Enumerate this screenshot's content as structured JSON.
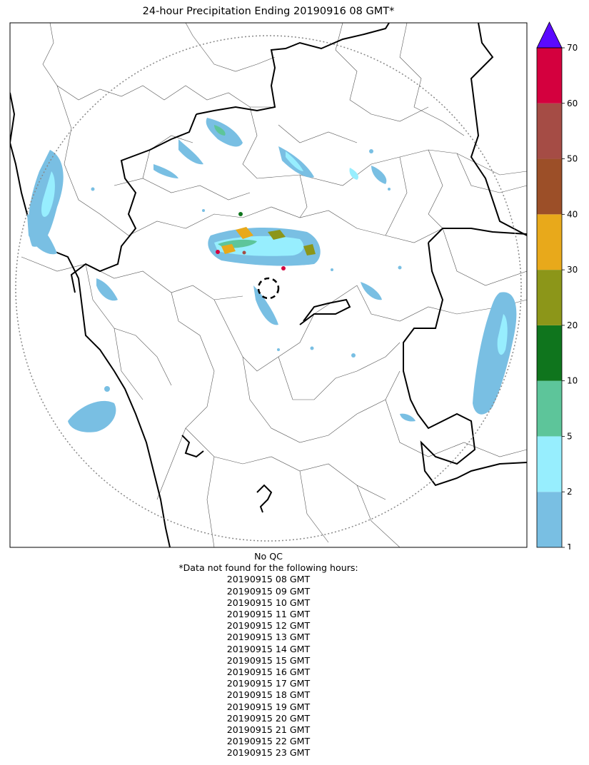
{
  "title": "24-hour Precipitation Ending 20190916 08 GMT*",
  "qc_note": "No QC",
  "missing_header": "*Data not found for the following hours:",
  "missing_hours": [
    "20190915 08 GMT",
    "20190915 09 GMT",
    "20190915 10 GMT",
    "20190915 11 GMT",
    "20190915 12 GMT",
    "20190915 13 GMT",
    "20190915 14 GMT",
    "20190915 15 GMT",
    "20190915 16 GMT",
    "20190915 17 GMT",
    "20190915 18 GMT",
    "20190915 19 GMT",
    "20190915 20 GMT",
    "20190915 21 GMT",
    "20190915 22 GMT",
    "20190915 23 GMT"
  ],
  "colorbar": {
    "levels": [
      1,
      2,
      5,
      10,
      20,
      30,
      40,
      50,
      60,
      70
    ],
    "tick_labels": [
      "1",
      "2",
      "5",
      "10",
      "20",
      "30",
      "40",
      "50",
      "60",
      "70"
    ],
    "colors": [
      "#79bfe3",
      "#97eefe",
      "#5dc59a",
      "#0f751d",
      "#8c9619",
      "#e8a91b",
      "#9c4f28",
      "#a54c45",
      "#d4003e"
    ],
    "extend_color": "#5a0aff"
  },
  "map_colors": {
    "ocean_coast": "#000000",
    "state_border": "#000000",
    "district_border": "#555555",
    "radar_range": "#888888"
  }
}
